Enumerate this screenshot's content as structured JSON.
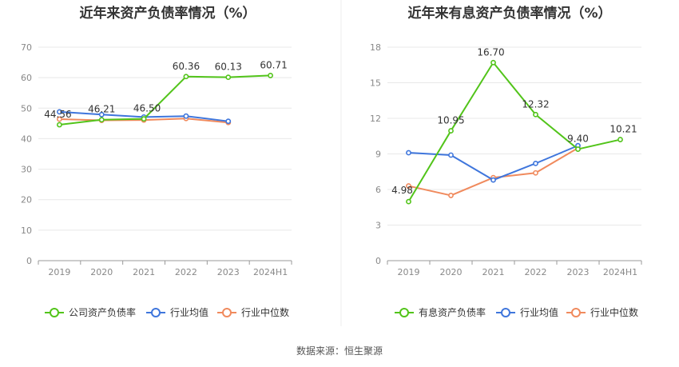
{
  "source": "数据来源：恒生聚源",
  "chart_data": [
    {
      "type": "line",
      "title": "近年来资产负债率情况（%）",
      "categories": [
        "2019",
        "2020",
        "2021",
        "2022",
        "2023",
        "2024H1"
      ],
      "ylim": [
        0,
        70
      ],
      "yticks": [
        0,
        10,
        20,
        30,
        40,
        50,
        60,
        70
      ],
      "grid": true,
      "legend_position": "bottom",
      "series": [
        {
          "name": "公司资产负债率",
          "color": "#52c41a",
          "values": [
            44.56,
            46.21,
            46.5,
            60.36,
            60.13,
            60.71
          ],
          "labels": [
            "44.56",
            "46.21",
            "46.50",
            "60.36",
            "60.13",
            "60.71"
          ]
        },
        {
          "name": "行业均值",
          "color": "#3f76dc",
          "values": [
            48.8,
            47.9,
            47.1,
            47.4,
            45.7,
            null
          ],
          "labels": []
        },
        {
          "name": "行业中位数",
          "color": "#f08a5d",
          "values": [
            46.4,
            46.0,
            46.1,
            46.6,
            45.3,
            null
          ],
          "labels": []
        }
      ]
    },
    {
      "type": "line",
      "title": "近年来有息资产负债率情况（%）",
      "categories": [
        "2019",
        "2020",
        "2021",
        "2022",
        "2023",
        "2024H1"
      ],
      "ylim": [
        0,
        18
      ],
      "yticks": [
        0,
        3,
        6,
        9,
        12,
        15,
        18
      ],
      "grid": true,
      "legend_position": "bottom",
      "series": [
        {
          "name": "有息资产负债率",
          "color": "#52c41a",
          "values": [
            4.98,
            10.95,
            16.7,
            12.32,
            9.4,
            10.21
          ],
          "labels": [
            "4.98",
            "10.95",
            "16.70",
            "12.32",
            "9.40",
            "10.21"
          ]
        },
        {
          "name": "行业均值",
          "color": "#3f76dc",
          "values": [
            9.1,
            8.9,
            6.8,
            8.2,
            9.7,
            null
          ],
          "labels": []
        },
        {
          "name": "行业中位数",
          "color": "#f08a5d",
          "values": [
            6.3,
            5.5,
            7.0,
            7.4,
            9.5,
            null
          ],
          "labels": []
        }
      ]
    }
  ]
}
